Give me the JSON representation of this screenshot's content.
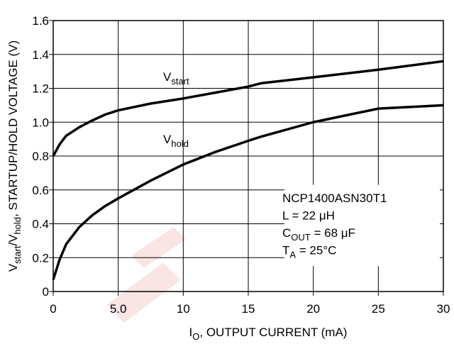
{
  "chart_data": {
    "type": "line",
    "xlabel": [
      {
        "text": "I"
      },
      {
        "text": "O",
        "sub": true
      },
      {
        "text": ", OUTPUT CURRENT (mA)"
      }
    ],
    "ylabel": [
      {
        "text": "V"
      },
      {
        "text": "start",
        "sub": true
      },
      {
        "text": "/V"
      },
      {
        "text": "hold",
        "sub": true
      },
      {
        "text": ", STARTUP/HOLD VOLTAGE (V)"
      }
    ],
    "xlim": [
      0,
      30
    ],
    "ylim": [
      0,
      1.6
    ],
    "xticks": [
      0,
      {
        "value": 5,
        "label": "5.0"
      },
      10,
      15,
      20,
      25,
      30
    ],
    "yticks": [
      0,
      0.2,
      0.4,
      0.6,
      0.8,
      {
        "value": 1.0,
        "label": "1.0"
      },
      1.2,
      1.4,
      1.6
    ],
    "grid": true,
    "x": [
      0,
      0.5,
      1,
      2,
      3,
      4,
      5,
      7.5,
      10,
      12.5,
      15,
      16,
      20,
      25,
      30
    ],
    "series": [
      {
        "label": [
          {
            "text": "V"
          },
          {
            "text": "start",
            "sub": true
          }
        ],
        "color": "#000000",
        "values": [
          0.8,
          0.87,
          0.92,
          0.97,
          1.01,
          1.045,
          1.07,
          1.11,
          1.14,
          1.175,
          1.21,
          1.23,
          1.265,
          1.31,
          1.36
        ]
      },
      {
        "label": [
          {
            "text": "V"
          },
          {
            "text": "hold",
            "sub": true
          }
        ],
        "color": "#000000",
        "values": [
          0.07,
          0.19,
          0.28,
          0.38,
          0.45,
          0.505,
          0.55,
          0.655,
          0.75,
          0.825,
          0.89,
          0.915,
          1.0,
          1.08,
          1.1
        ]
      }
    ],
    "annotation": [
      [
        {
          "text": "NCP1400ASN30T1"
        }
      ],
      [
        {
          "text": "L = 22 μH"
        }
      ],
      [
        {
          "text": "C"
        },
        {
          "text": "OUT",
          "sub": true
        },
        {
          "text": " = 68 μF"
        }
      ],
      [
        {
          "text": "T"
        },
        {
          "text": "A",
          "sub": true
        },
        {
          "text": " = 25°C"
        }
      ]
    ]
  }
}
